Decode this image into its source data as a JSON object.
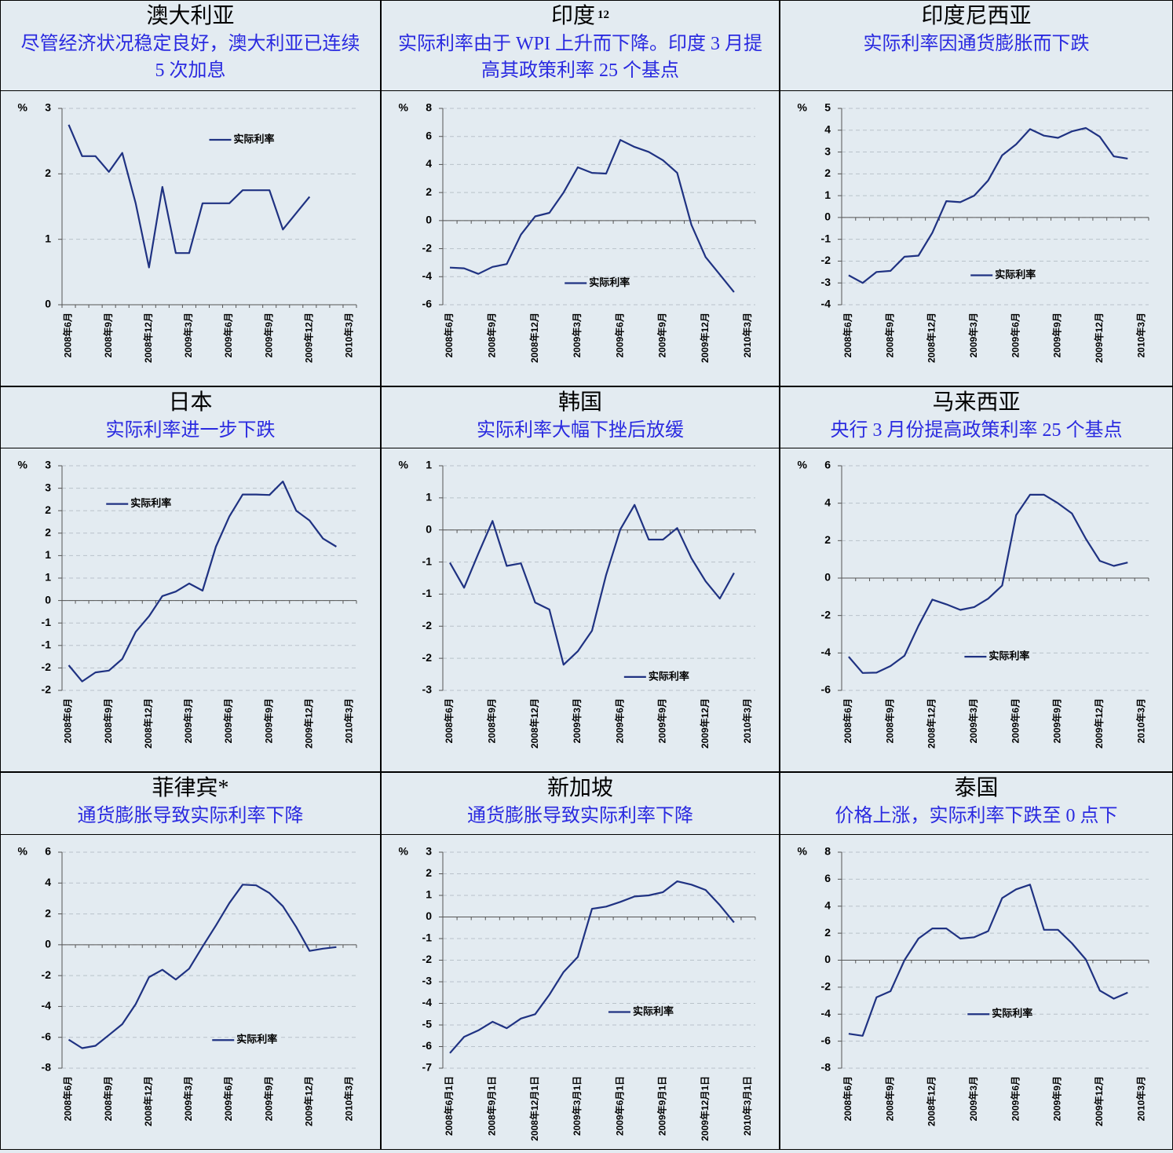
{
  "chart_data": [
    {
      "type": "line",
      "title": "澳大利亚",
      "subtitle": "尽管经济状况稳定良好，澳大利亚已连续 5 次加息",
      "y_unit": "%",
      "categories": [
        "2008年6月",
        null,
        null,
        "2008年9月",
        null,
        null,
        "2008年12月",
        null,
        null,
        "2009年3月",
        null,
        null,
        "2009年6月",
        null,
        null,
        "2009年9月",
        null,
        null,
        "2009年12月",
        null,
        null,
        "2010年3月"
      ],
      "series": [
        {
          "name": "实际利率",
          "color": "#1f3282",
          "values": [
            2.75,
            2.27,
            2.27,
            2.03,
            2.32,
            1.55,
            0.57,
            1.8,
            0.79,
            0.79,
            1.55,
            1.55,
            1.55,
            1.75,
            1.75,
            1.75,
            1.15,
            1.4,
            1.65,
            null,
            null,
            null
          ]
        }
      ],
      "ylim": [
        0,
        3
      ],
      "yticks": [
        0,
        1,
        2,
        3
      ],
      "grid": true,
      "legend": "upper center"
    },
    {
      "type": "line",
      "title": "印度",
      "title_note": "12",
      "subtitle": "实际利率由于 WPI 上升而下降。印度 3 月提高其政策利率 25 个基点",
      "y_unit": "%",
      "categories": [
        "2008年6月",
        null,
        null,
        "2008年9月",
        null,
        null,
        "2008年12月",
        null,
        null,
        "2009年3月",
        null,
        null,
        "2009年6月",
        null,
        null,
        "2009年9月",
        null,
        null,
        "2009年12月",
        null,
        null,
        "2010年3月"
      ],
      "series": [
        {
          "name": "实际利率",
          "color": "#1f3282",
          "values": [
            -3.35,
            -3.4,
            -3.8,
            -3.3,
            -3.1,
            -1.0,
            0.3,
            0.55,
            2.0,
            3.8,
            3.4,
            3.35,
            5.75,
            5.25,
            4.9,
            4.3,
            3.4,
            -0.3,
            -2.6,
            -3.85,
            -5.1,
            null
          ]
        }
      ],
      "ylim": [
        -6,
        8
      ],
      "yticks": [
        -6,
        -4,
        -2,
        0,
        2,
        4,
        6,
        8
      ],
      "grid": true,
      "legend": "lower center"
    },
    {
      "type": "line",
      "title": "印度尼西亚",
      "subtitle": "实际利率因通货膨胀而下跌",
      "y_unit": "%",
      "categories": [
        "2008年6月",
        null,
        null,
        "2008年9月",
        null,
        null,
        "2008年12月",
        null,
        null,
        "2009年3月",
        null,
        null,
        "2009年6月",
        null,
        null,
        "2009年9月",
        null,
        null,
        "2009年12月",
        null,
        null,
        "2010年3月"
      ],
      "series": [
        {
          "name": "实际利率",
          "color": "#1f3282",
          "values": [
            -2.65,
            -3.0,
            -2.5,
            -2.45,
            -1.8,
            -1.75,
            -0.7,
            0.75,
            0.7,
            1.0,
            1.7,
            2.85,
            3.35,
            4.05,
            3.75,
            3.65,
            3.95,
            4.1,
            3.7,
            2.8,
            2.7,
            null
          ]
        }
      ],
      "ylim": [
        -4,
        5
      ],
      "yticks": [
        -4,
        -3,
        -2,
        -1,
        0,
        1,
        2,
        3,
        4,
        5
      ],
      "grid": true,
      "legend": "lower center"
    },
    {
      "type": "line",
      "title": "日本",
      "subtitle": "实际利率进一步下跌",
      "y_unit": "%",
      "categories": [
        "2008年6月",
        null,
        null,
        "2008年9月",
        null,
        null,
        "2008年12月",
        null,
        null,
        "2009年3月",
        null,
        null,
        "2009年6月",
        null,
        null,
        "2009年9月",
        null,
        null,
        "2009年12月",
        null,
        null,
        "2010年3月"
      ],
      "series": [
        {
          "name": "实际利率",
          "color": "#1f3282",
          "values": [
            -1.44,
            -1.8,
            -1.6,
            -1.56,
            -1.3,
            -0.7,
            -0.35,
            0.1,
            0.2,
            0.38,
            0.22,
            1.2,
            1.87,
            2.36,
            2.36,
            2.35,
            2.65,
            2.0,
            1.78,
            1.38,
            1.2,
            null
          ]
        }
      ],
      "ylim": [
        -2,
        3
      ],
      "yticks": [
        -2,
        {
          "value": -1.5,
          "label": "-2"
        },
        -1,
        {
          "value": -0.5,
          "label": "-1"
        },
        0,
        {
          "value": 0.5,
          "label": "1"
        },
        1,
        {
          "value": 1.5,
          "label": "2"
        },
        2,
        {
          "value": 2.5,
          "label": "3"
        },
        3
      ],
      "grid": true,
      "legend": "upper left"
    },
    {
      "type": "line",
      "title": "韩国",
      "subtitle": "实际利率大幅下挫后放缓",
      "y_unit": "%",
      "categories": [
        "2008年6月",
        null,
        null,
        "2008年9月",
        null,
        null,
        "2008年12月",
        null,
        null,
        "2009年3月",
        null,
        null,
        "2009年6月",
        null,
        null,
        "2009年9月",
        null,
        null,
        "2009年12月",
        null,
        null,
        "2010年3月"
      ],
      "series": [
        {
          "name": "实际利率",
          "color": "#1f3282",
          "values": [
            -0.51,
            -0.9,
            -0.37,
            0.14,
            -0.56,
            -0.52,
            -1.13,
            -1.24,
            -2.1,
            -1.89,
            -1.57,
            -0.7,
            0.01,
            0.39,
            -0.15,
            -0.15,
            0.03,
            -0.44,
            -0.8,
            -1.07,
            -0.67,
            null
          ]
        }
      ],
      "ylim": [
        -2.5,
        1
      ],
      "yticks": [
        {
          "value": -2.5,
          "label": "-3"
        },
        -2,
        {
          "value": -1.5,
          "label": "-2"
        },
        -1,
        {
          "value": -0.5,
          "label": "-1"
        },
        0,
        {
          "value": 0.5,
          "label": "1"
        },
        1
      ],
      "grid": true,
      "legend": "lower right"
    },
    {
      "type": "line",
      "title": "马来西亚",
      "subtitle": "央行 3 月份提高政策利率 25 个基点",
      "y_unit": "%",
      "categories": [
        "2008年6月",
        null,
        null,
        "2008年9月",
        null,
        null,
        "2008年12月",
        null,
        null,
        "2009年3月",
        null,
        null,
        "2009年6月",
        null,
        null,
        "2009年9月",
        null,
        null,
        "2009年12月",
        null,
        null,
        "2010年3月"
      ],
      "series": [
        {
          "name": "实际利率",
          "color": "#1f3282",
          "values": [
            -4.2,
            -5.07,
            -5.05,
            -4.7,
            -4.15,
            -2.55,
            -1.15,
            -1.4,
            -1.7,
            -1.55,
            -1.1,
            -0.4,
            3.36,
            4.45,
            4.45,
            4.0,
            3.45,
            2.1,
            0.92,
            0.65,
            0.83,
            null
          ]
        }
      ],
      "ylim": [
        -6,
        6
      ],
      "yticks": [
        -6,
        -4,
        -2,
        0,
        2,
        4,
        6
      ],
      "grid": true,
      "legend": "lower center"
    },
    {
      "type": "line",
      "title": "菲律宾*",
      "subtitle": "通货膨胀导致实际利率下降",
      "y_unit": "%",
      "categories": [
        "2008年6月",
        null,
        null,
        "2008年9月",
        null,
        null,
        "2008年12月",
        null,
        null,
        "2009年3月",
        null,
        null,
        "2009年6月",
        null,
        null,
        "2009年9月",
        null,
        null,
        "2009年12月",
        null,
        null,
        "2010年3月"
      ],
      "series": [
        {
          "name": "实际利率",
          "color": "#1f3282",
          "values": [
            -6.15,
            -6.7,
            -6.55,
            -5.85,
            -5.15,
            -3.85,
            -2.1,
            -1.62,
            -2.25,
            -1.55,
            -0.12,
            1.25,
            2.7,
            3.9,
            3.85,
            3.35,
            2.5,
            1.15,
            -0.4,
            -0.25,
            -0.15,
            null
          ]
        }
      ],
      "ylim": [
        -8,
        6
      ],
      "yticks": [
        -8,
        -6,
        -4,
        -2,
        0,
        2,
        4,
        6
      ],
      "grid": true,
      "legend": "lower right"
    },
    {
      "type": "line",
      "title": "新加坡",
      "subtitle": "通货膨胀导致实际利率下降",
      "y_unit": "%",
      "categories": [
        "2008年6月1日",
        null,
        null,
        "2008年9月1日",
        null,
        null,
        "2008年12月1日",
        null,
        null,
        "2009年3月1日",
        null,
        null,
        "2009年6月1日",
        null,
        null,
        "2009年9月1日",
        null,
        null,
        "2009年12月1日",
        null,
        null,
        "2010年3月1日"
      ],
      "series": [
        {
          "name": "实际利率",
          "color": "#1f3282",
          "values": [
            -6.3,
            -5.55,
            -5.25,
            -4.85,
            -5.15,
            -4.7,
            -4.5,
            -3.6,
            -2.55,
            -1.85,
            0.38,
            0.48,
            0.7,
            0.95,
            1.0,
            1.15,
            1.65,
            1.5,
            1.25,
            0.55,
            -0.25,
            null
          ]
        }
      ],
      "ylim": [
        -7,
        3
      ],
      "yticks": [
        -7,
        -6,
        -5,
        -4,
        -3,
        -2,
        -1,
        0,
        1,
        2,
        3
      ],
      "grid": true,
      "legend": "lower center"
    },
    {
      "type": "line",
      "title": "泰国",
      "subtitle": "价格上涨，实际利率下跌至 0 点下",
      "y_unit": "%",
      "categories": [
        "2008年6月",
        null,
        null,
        "2008年9月",
        null,
        null,
        "2008年12月",
        null,
        null,
        "2009年3月",
        null,
        null,
        "2009年6月",
        null,
        null,
        "2009年9月",
        null,
        null,
        "2009年12月",
        null,
        null,
        "2010年3月"
      ],
      "series": [
        {
          "name": "实际利率",
          "color": "#1f3282",
          "values": [
            -5.45,
            -5.6,
            -2.75,
            -2.3,
            0.0,
            1.6,
            2.35,
            2.35,
            1.6,
            1.7,
            2.15,
            4.6,
            5.25,
            5.6,
            2.25,
            2.25,
            1.25,
            0.05,
            -2.25,
            -2.85,
            -2.4,
            null
          ]
        }
      ],
      "ylim": [
        -8,
        8
      ],
      "yticks": [
        -8,
        -6,
        -4,
        -2,
        0,
        2,
        4,
        6,
        8
      ],
      "grid": true,
      "legend": "lower center"
    }
  ]
}
